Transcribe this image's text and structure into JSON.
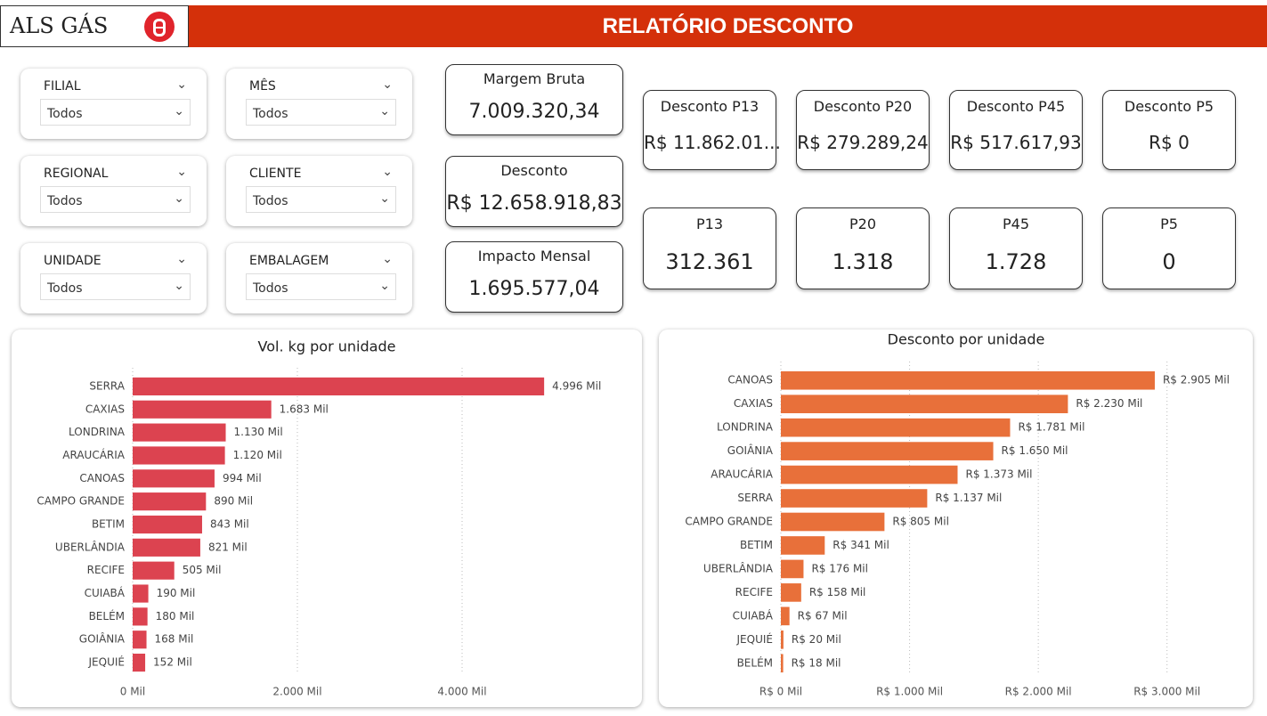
{
  "header": {
    "logo": "ALS GÁS",
    "title": "RELATÓRIO DESCONTO"
  },
  "filters": [
    {
      "label": "FILIAL",
      "value": "Todos"
    },
    {
      "label": "MÊS",
      "value": "Todos"
    },
    {
      "label": "REGIONAL",
      "value": "Todos"
    },
    {
      "label": "CLIENTE",
      "value": "Todos"
    },
    {
      "label": "UNIDADE",
      "value": "Todos"
    },
    {
      "label": "EMBALAGEM",
      "value": "Todos"
    }
  ],
  "kpis": [
    {
      "label": "Margem Bruta",
      "value": "7.009.320,34"
    },
    {
      "label": "Desconto",
      "value": "R$ 12.658.918,83"
    },
    {
      "label": "Impacto Mensal",
      "value": "1.695.577,04"
    }
  ],
  "cards": [
    {
      "label": "Desconto P13",
      "value": "R$ 11.862.01..."
    },
    {
      "label": "Desconto P20",
      "value": "R$ 279.289,24"
    },
    {
      "label": "Desconto P45",
      "value": "R$ 517.617,93"
    },
    {
      "label": "Desconto P5",
      "value": "R$ 0"
    },
    {
      "label": "P13",
      "value": "312.361"
    },
    {
      "label": "P20",
      "value": "1.318"
    },
    {
      "label": "P45",
      "value": "1.728"
    },
    {
      "label": "P5",
      "value": "0"
    }
  ],
  "chart_data": [
    {
      "type": "bar",
      "title": "Vol. kg por unidade",
      "color": "#dc4350",
      "grid": true,
      "categories": [
        "SERRA",
        "CAXIAS",
        "LONDRINA",
        "ARAUCÁRIA",
        "CANOAS",
        "CAMPO GRANDE",
        "BETIM",
        "UBERLÂNDIA",
        "RECIFE",
        "CUIABÁ",
        "BELÉM",
        "GOIÂNIA",
        "JEQUIÉ"
      ],
      "values": [
        4996,
        1683,
        1130,
        1120,
        994,
        890,
        843,
        821,
        505,
        190,
        180,
        168,
        152
      ],
      "value_labels": [
        "4.996 Mil",
        "1.683 Mil",
        "1.130 Mil",
        "1.120 Mil",
        "994 Mil",
        "890 Mil",
        "843 Mil",
        "821 Mil",
        "505 Mil",
        "190 Mil",
        "180 Mil",
        "168 Mil",
        "152 Mil"
      ],
      "xlim": [
        0,
        6000
      ],
      "xticks": [
        {
          "value": 0,
          "label": "0 Mil"
        },
        {
          "value": 2000,
          "label": "2.000 Mil"
        },
        {
          "value": 4000,
          "label": "4.000 Mil"
        }
      ]
    },
    {
      "type": "bar",
      "title": "Desconto por unidade",
      "color": "#e8703a",
      "grid": true,
      "categories": [
        "CANOAS",
        "CAXIAS",
        "LONDRINA",
        "GOIÂNIA",
        "ARAUCÁRIA",
        "SERRA",
        "CAMPO GRANDE",
        "BETIM",
        "UBERLÂNDIA",
        "RECIFE",
        "CUIABÁ",
        "JEQUIÉ",
        "BELÉM"
      ],
      "values": [
        2905,
        2230,
        1781,
        1650,
        1373,
        1137,
        805,
        341,
        176,
        158,
        67,
        20,
        18
      ],
      "value_labels": [
        "R$ 2.905 Mil",
        "R$ 2.230 Mil",
        "R$ 1.781 Mil",
        "R$ 1.650 Mil",
        "R$ 1.373 Mil",
        "R$ 1.137 Mil",
        "R$ 805 Mil",
        "R$ 341 Mil",
        "R$ 176 Mil",
        "R$ 158 Mil",
        "R$ 67 Mil",
        "R$ 20 Mil",
        "R$ 18 Mil"
      ],
      "xlim": [
        0,
        3500
      ],
      "xticks": [
        {
          "value": 0,
          "label": "R$ 0 Mil"
        },
        {
          "value": 1000,
          "label": "R$ 1.000 Mil"
        },
        {
          "value": 2000,
          "label": "R$ 2.000 Mil"
        },
        {
          "value": 3000,
          "label": "R$ 3.000 Mil"
        }
      ]
    }
  ]
}
